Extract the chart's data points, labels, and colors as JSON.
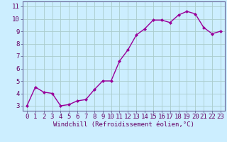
{
  "x": [
    0,
    1,
    2,
    3,
    4,
    5,
    6,
    7,
    8,
    9,
    10,
    11,
    12,
    13,
    14,
    15,
    16,
    17,
    18,
    19,
    20,
    21,
    22,
    23
  ],
  "y": [
    3.0,
    4.5,
    4.1,
    4.0,
    3.0,
    3.1,
    3.4,
    3.5,
    4.3,
    5.0,
    5.0,
    6.6,
    7.5,
    8.7,
    9.2,
    9.9,
    9.9,
    9.7,
    10.3,
    10.6,
    10.4,
    9.3,
    8.8,
    9.0
  ],
  "line_color": "#990099",
  "marker": "D",
  "marker_size": 2,
  "linewidth": 1.0,
  "bg_color": "#cceeff",
  "grid_color": "#aacccc",
  "xlabel": "Windchill (Refroidissement éolien,°C)",
  "xlabel_fontsize": 6.5,
  "ylabel_ticks": [
    3,
    4,
    5,
    6,
    7,
    8,
    9,
    10,
    11
  ],
  "xlim": [
    -0.5,
    23.5
  ],
  "ylim": [
    2.6,
    11.4
  ],
  "tick_fontsize": 6.5,
  "tick_color": "#660066",
  "spine_color": "#666699"
}
